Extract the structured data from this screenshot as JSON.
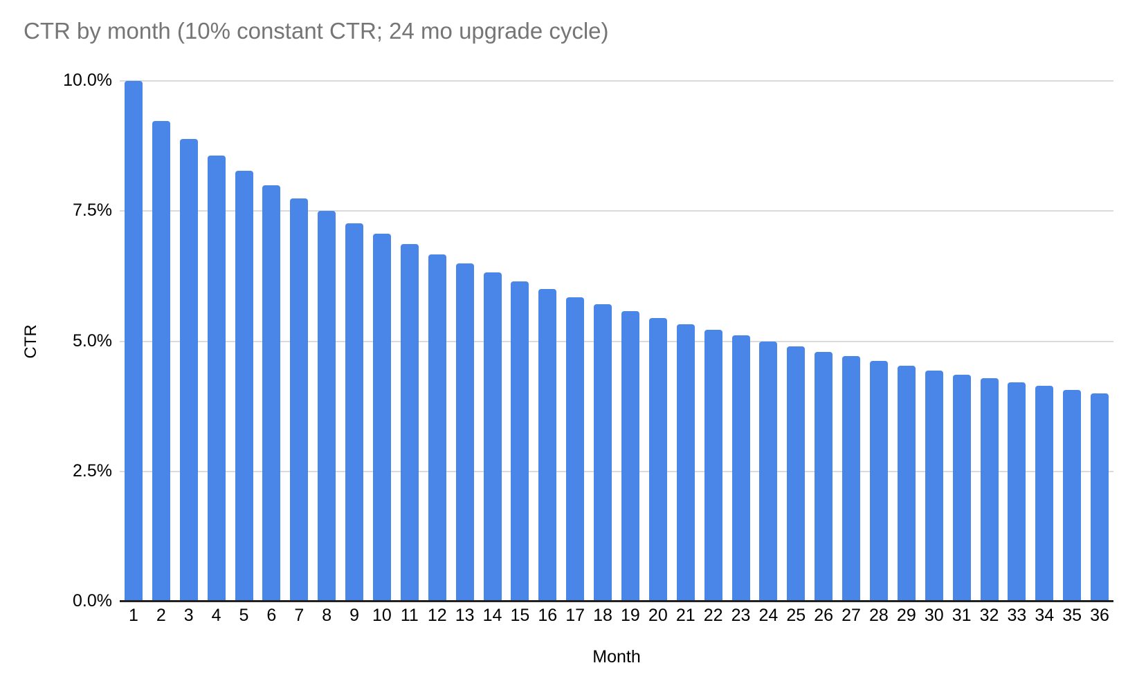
{
  "chart_data": {
    "type": "bar",
    "title": "CTR by month (10% constant CTR; 24 mo upgrade cycle)",
    "xlabel": "Month",
    "ylabel": "CTR",
    "categories": [
      "1",
      "2",
      "3",
      "4",
      "5",
      "6",
      "7",
      "8",
      "9",
      "10",
      "11",
      "12",
      "13",
      "14",
      "15",
      "16",
      "17",
      "18",
      "19",
      "20",
      "21",
      "22",
      "23",
      "24",
      "25",
      "26",
      "27",
      "28",
      "29",
      "30",
      "31",
      "32",
      "33",
      "34",
      "35",
      "36"
    ],
    "values": [
      10.0,
      9.23,
      8.89,
      8.57,
      8.28,
      8.0,
      7.74,
      7.5,
      7.27,
      7.06,
      6.86,
      6.67,
      6.49,
      6.32,
      6.15,
      6.0,
      5.85,
      5.71,
      5.58,
      5.45,
      5.33,
      5.22,
      5.11,
      5.0,
      4.9,
      4.8,
      4.71,
      4.62,
      4.53,
      4.44,
      4.36,
      4.29,
      4.21,
      4.14,
      4.07,
      4.0
    ],
    "series_name": "CTR",
    "ylim": [
      0,
      10
    ],
    "yticks": [
      {
        "value": 0,
        "label": "0.0%"
      },
      {
        "value": 2.5,
        "label": "2.5%"
      },
      {
        "value": 5,
        "label": "5.0%"
      },
      {
        "value": 7.5,
        "label": "7.5%"
      },
      {
        "value": 10,
        "label": "10.0%"
      }
    ],
    "grid": true,
    "legend": "none"
  },
  "colors": {
    "bar": "#4a86e8",
    "gridline": "#dadada",
    "axis_line": "#212121",
    "title_text": "#757575",
    "label_text": "#000000",
    "background": "#ffffff"
  }
}
